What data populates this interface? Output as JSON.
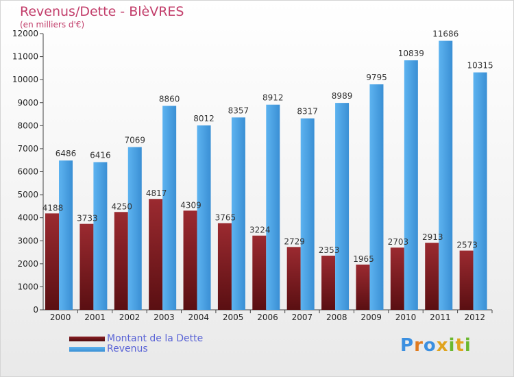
{
  "header": {
    "title": "Revenus/Dette - BlèVRES",
    "subtitle": "(en milliers d'€)"
  },
  "colors": {
    "title": "#c23d6a",
    "dette": "#8a1f24",
    "revenus": "#4aa3e6",
    "legend_text": "#5a64d6"
  },
  "chart_data": {
    "type": "bar",
    "title": "Revenus/Dette - BlèVRES",
    "ylabel": "(en milliers d'€)",
    "ylim": [
      0,
      12000
    ],
    "yticks": [
      0,
      1000,
      2000,
      3000,
      4000,
      5000,
      6000,
      7000,
      8000,
      9000,
      10000,
      11000,
      12000
    ],
    "grid": false,
    "legend_position": "bottom-left",
    "categories": [
      "2000",
      "2001",
      "2002",
      "2003",
      "2004",
      "2005",
      "2006",
      "2007",
      "2008",
      "2009",
      "2010",
      "2011",
      "2012"
    ],
    "series": [
      {
        "name": "Montant de la Dette",
        "values": [
          4188,
          3733,
          4250,
          4817,
          4309,
          3765,
          3224,
          2729,
          2353,
          1965,
          2703,
          2913,
          2573
        ]
      },
      {
        "name": "Revenus",
        "values": [
          6486,
          6416,
          7069,
          8860,
          8012,
          8357,
          8912,
          8317,
          8989,
          9795,
          10839,
          11686,
          10315
        ]
      }
    ]
  },
  "logo": {
    "text": "Proxiti"
  }
}
